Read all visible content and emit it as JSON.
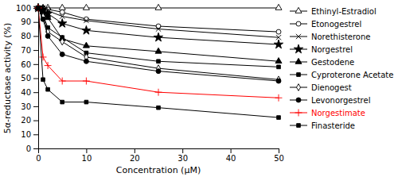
{
  "chart_data": {
    "type": "line",
    "x": [
      0,
      1,
      2,
      5,
      10,
      25,
      50
    ],
    "xlabel": "Concentration (μM)",
    "ylabel": "5α-reductase activity (%)",
    "xlim": [
      0,
      50
    ],
    "ylim": [
      0,
      100
    ],
    "xticks": [
      0,
      10,
      20,
      30,
      40,
      50
    ],
    "yticks": [
      0,
      10,
      20,
      30,
      40,
      50,
      60,
      70,
      80,
      90,
      100
    ],
    "grid": false,
    "legend": "right",
    "series": [
      {
        "name": "Ethinyl-Estradiol",
        "color": "#000000",
        "marker": "triangle-open",
        "values": [
          100,
          100,
          100,
          100,
          100,
          100,
          100
        ]
      },
      {
        "name": "Etonogestrel",
        "color": "#000000",
        "marker": "circle-open",
        "values": [
          100,
          100,
          99,
          97,
          92,
          87,
          83
        ]
      },
      {
        "name": "Norethisterone",
        "color": "#000000",
        "marker": "x",
        "values": [
          100,
          100,
          98,
          94,
          91,
          85,
          79
        ]
      },
      {
        "name": "Norgestrel",
        "color": "#000000",
        "marker": "star",
        "values": [
          100,
          99,
          96,
          89,
          84,
          79,
          74
        ]
      },
      {
        "name": "Gestodene",
        "color": "#000000",
        "marker": "triangle",
        "values": [
          100,
          97,
          93,
          78,
          73,
          69,
          62
        ]
      },
      {
        "name": "Cyproterone Acetate",
        "color": "#000000",
        "marker": "square",
        "values": [
          100,
          95,
          86,
          79,
          68,
          62,
          58
        ]
      },
      {
        "name": "Dienogest",
        "color": "#000000",
        "marker": "diamond-open",
        "values": [
          100,
          94,
          83,
          76,
          65,
          57,
          49
        ]
      },
      {
        "name": "Levonorgestrel",
        "color": "#000000",
        "marker": "circle",
        "values": [
          100,
          92,
          80,
          67,
          62,
          55,
          48
        ]
      },
      {
        "name": "Norgestimate",
        "color": "#ff0000",
        "marker": "plus",
        "values": [
          100,
          65,
          59,
          48,
          48,
          40,
          36
        ]
      },
      {
        "name": "Finasteride",
        "color": "#000000",
        "marker": "square",
        "values": [
          100,
          49,
          42,
          33,
          33,
          29,
          22
        ]
      }
    ]
  }
}
